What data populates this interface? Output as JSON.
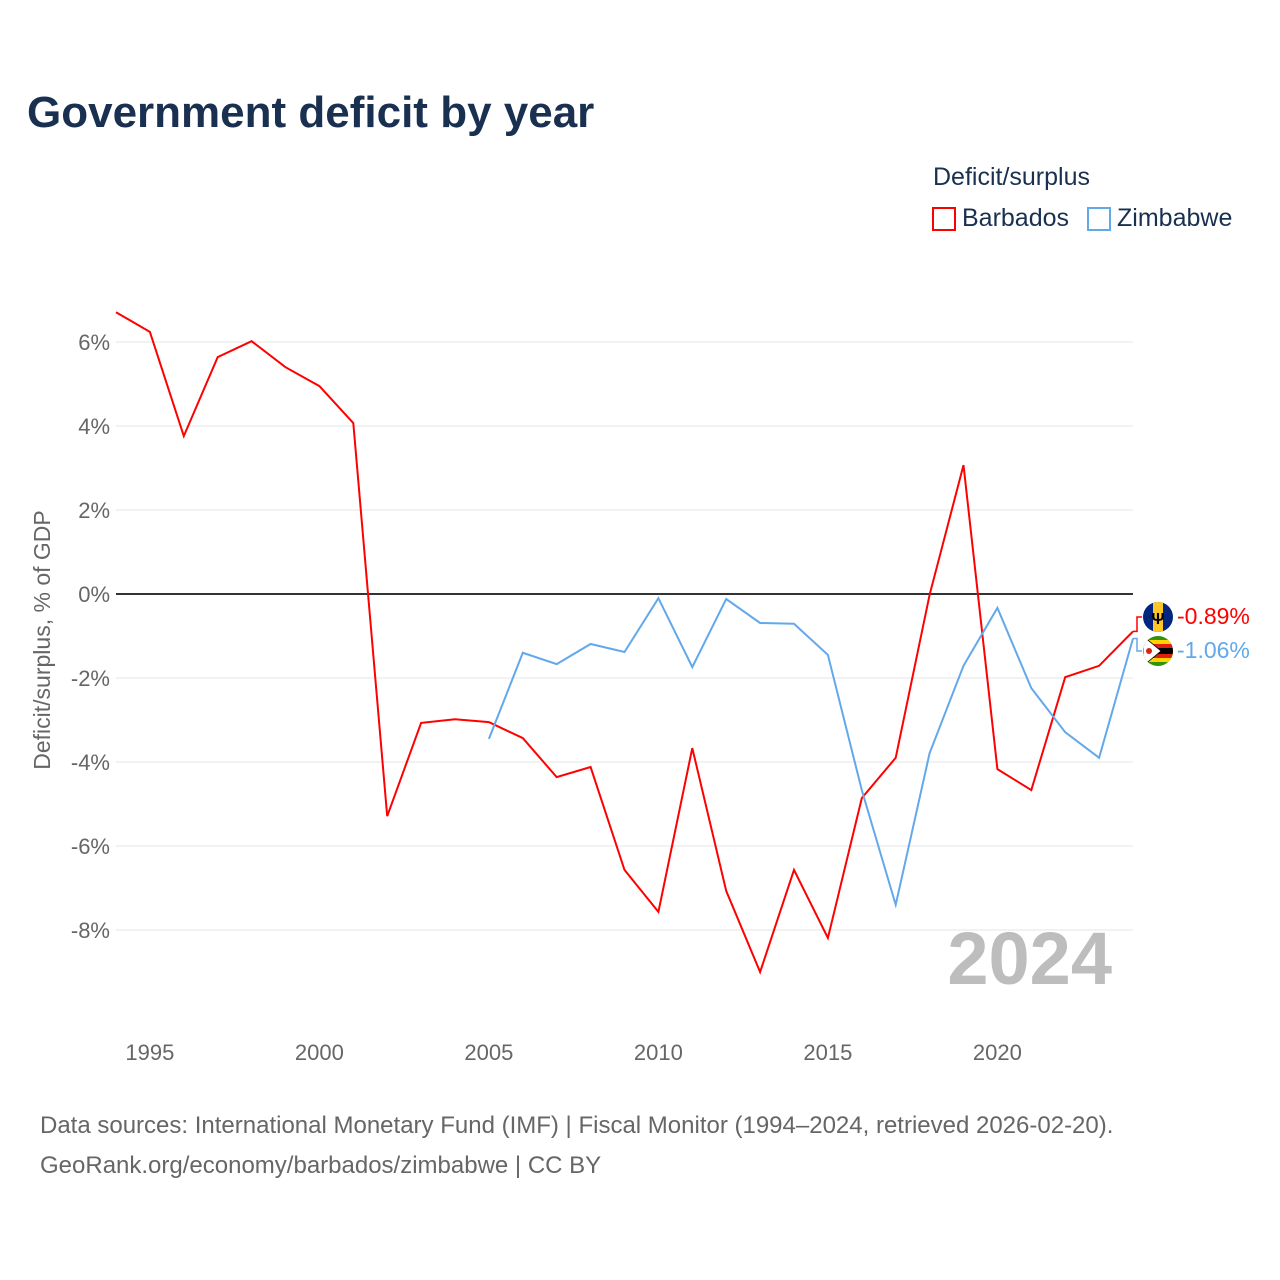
{
  "title": "Government deficit by year",
  "legend": {
    "title": "Deficit/surplus"
  },
  "footer": {
    "line1": "Data sources: International Monetary Fund (IMF) | Fiscal Monitor (1994–2024, retrieved 2026-02-20).",
    "line2": "GeoRank.org/economy/barbados/zimbabwe | CC BY"
  },
  "chart_data": {
    "type": "line",
    "title": "Government deficit by year",
    "xlabel": "",
    "ylabel": "Deficit/surplus, % of GDP",
    "xlim": [
      1994,
      2024
    ],
    "ylim": [
      -10,
      7
    ],
    "x_ticks": [
      1995,
      2000,
      2005,
      2010,
      2015,
      2020
    ],
    "y_ticks": [
      6,
      4,
      2,
      0,
      -2,
      -4,
      -6,
      -8
    ],
    "y_tick_labels": [
      "6%",
      "4%",
      "2%",
      "0%",
      "-2%",
      "-4%",
      "-6%",
      "-8%"
    ],
    "grid": true,
    "legend_position": "top-right",
    "watermark_year": "2024",
    "series": [
      {
        "name": "Barbados",
        "color": "#ff0000",
        "flag": "barbados-flag-icon",
        "end_label": "-0.89%",
        "x": [
          1994,
          1995,
          1996,
          1997,
          1998,
          1999,
          2000,
          2001,
          2002,
          2003,
          2004,
          2005,
          2006,
          2007,
          2008,
          2009,
          2010,
          2011,
          2012,
          2013,
          2014,
          2015,
          2016,
          2017,
          2018,
          2019,
          2020,
          2021,
          2022,
          2023,
          2024
        ],
        "values": [
          6.71,
          6.24,
          3.76,
          5.64,
          6.02,
          5.4,
          4.95,
          4.07,
          -5.29,
          -3.07,
          -2.98,
          -3.05,
          -3.43,
          -4.36,
          -4.12,
          -6.57,
          -7.57,
          -3.67,
          -7.07,
          -9.0,
          -6.57,
          -8.19,
          -4.86,
          -3.9,
          -0.02,
          3.07,
          -4.17,
          -4.67,
          -1.98,
          -1.71,
          -0.89
        ]
      },
      {
        "name": "Zimbabwe",
        "color": "#62a8ea",
        "flag": "zimbabwe-flag-icon",
        "end_label": "-1.06%",
        "x": [
          2005,
          2006,
          2007,
          2008,
          2009,
          2010,
          2011,
          2012,
          2013,
          2014,
          2015,
          2016,
          2017,
          2018,
          2019,
          2020,
          2021,
          2022,
          2023,
          2024
        ],
        "values": [
          -3.45,
          -1.4,
          -1.67,
          -1.19,
          -1.38,
          -0.1,
          -1.74,
          -0.12,
          -0.69,
          -0.71,
          -1.45,
          -4.67,
          -7.4,
          -3.79,
          -1.71,
          -0.33,
          -2.24,
          -3.29,
          -3.9,
          -1.06
        ]
      }
    ]
  }
}
